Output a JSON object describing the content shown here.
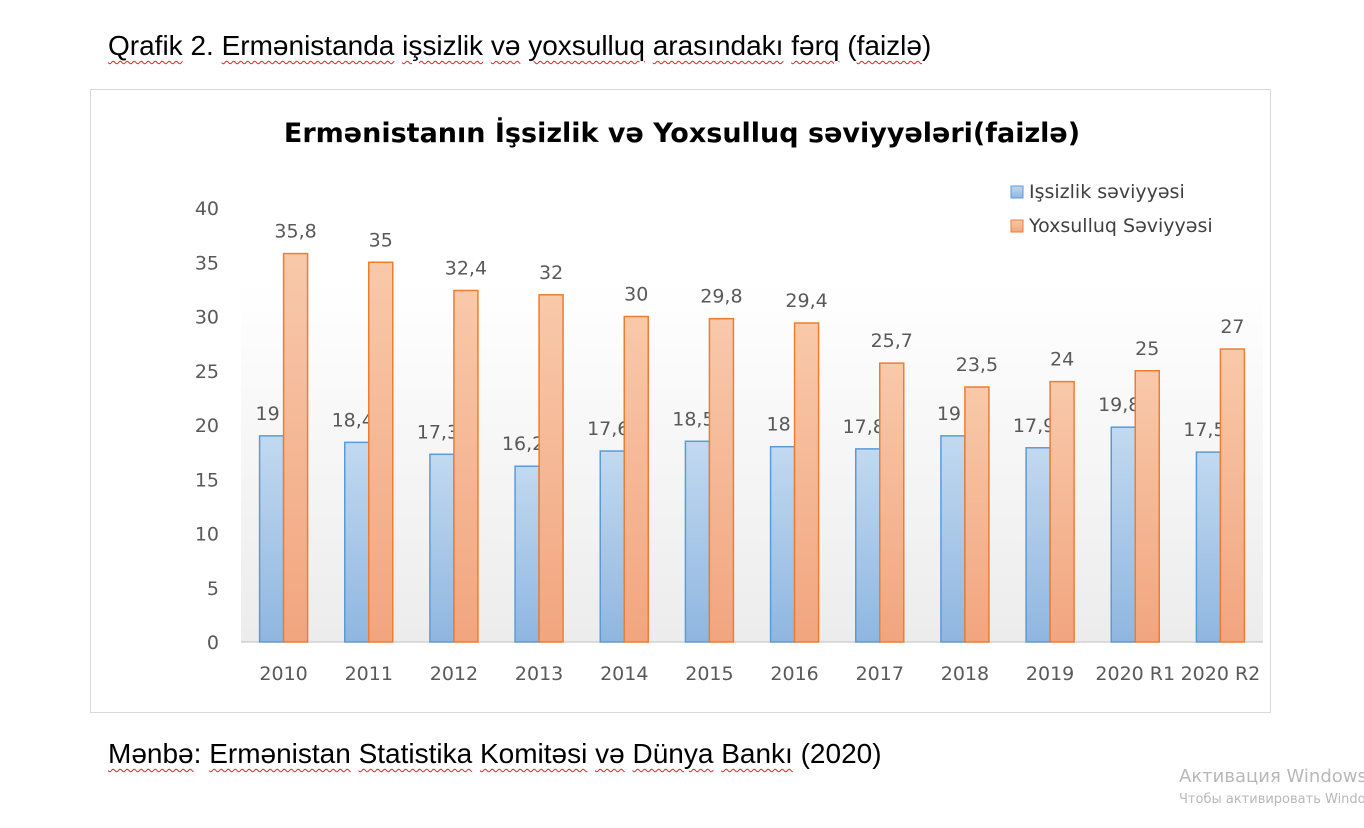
{
  "document": {
    "caption_words": [
      "Qrafik",
      " 2. ",
      "Ermənistanda",
      " ",
      "işsizlik",
      " ",
      "və",
      " ",
      "yoxsulluq",
      " ",
      "arasındakı",
      " ",
      "fərq",
      " (",
      "faizlə",
      ")"
    ],
    "source_words": [
      "Mənbə",
      ": ",
      "Ermənistan",
      " ",
      "Statistika",
      " ",
      "Komitəsi",
      " ",
      "və",
      " ",
      "Dünya",
      " ",
      "Bankı",
      " (2020)"
    ]
  },
  "watermark": {
    "line1": "Активация Windows",
    "line2": "Чтобы активировать Windows"
  },
  "chart_data": {
    "type": "bar",
    "title": "Ermənistanın İşsizlik və Yoxsulluq səviyyələri(faizlə)",
    "xlabel": "",
    "ylabel": "",
    "ylim": [
      0,
      40
    ],
    "yticks": [
      "0",
      "5",
      "10",
      "15",
      "20",
      "25",
      "30",
      "35",
      "40"
    ],
    "categories": [
      "2010",
      "2011",
      "2012",
      "2013",
      "2014",
      "2015",
      "2016",
      "2017",
      "2018",
      "2019",
      "2020 R1",
      "2020 R2"
    ],
    "series": [
      {
        "name": "Işsizlik səviyyəsi",
        "color": "#9dc3e6",
        "stroke": "#5b9bd5",
        "values": [
          19,
          18.4,
          17.3,
          16.2,
          17.6,
          18.5,
          18,
          17.8,
          19,
          17.9,
          19.8,
          17.5
        ],
        "labels": [
          "19",
          "18,4",
          "17,3",
          "16,2",
          "17,6",
          "18,5",
          "18",
          "17,8",
          "19",
          "17,9",
          "19,8",
          "17,5"
        ]
      },
      {
        "name": "Yoxsulluq Səviyyəsi",
        "color": "#f4b183",
        "stroke": "#ed7d31",
        "values": [
          35.8,
          35,
          32.4,
          32,
          30,
          29.8,
          29.4,
          25.7,
          23.5,
          24,
          25,
          27
        ],
        "labels": [
          "35,8",
          "35",
          "32,4",
          "32",
          "30",
          "29,8",
          "29,4",
          "25,7",
          "23,5",
          "24",
          "25",
          "27"
        ]
      }
    ],
    "grid": false,
    "legend": "top-right"
  }
}
